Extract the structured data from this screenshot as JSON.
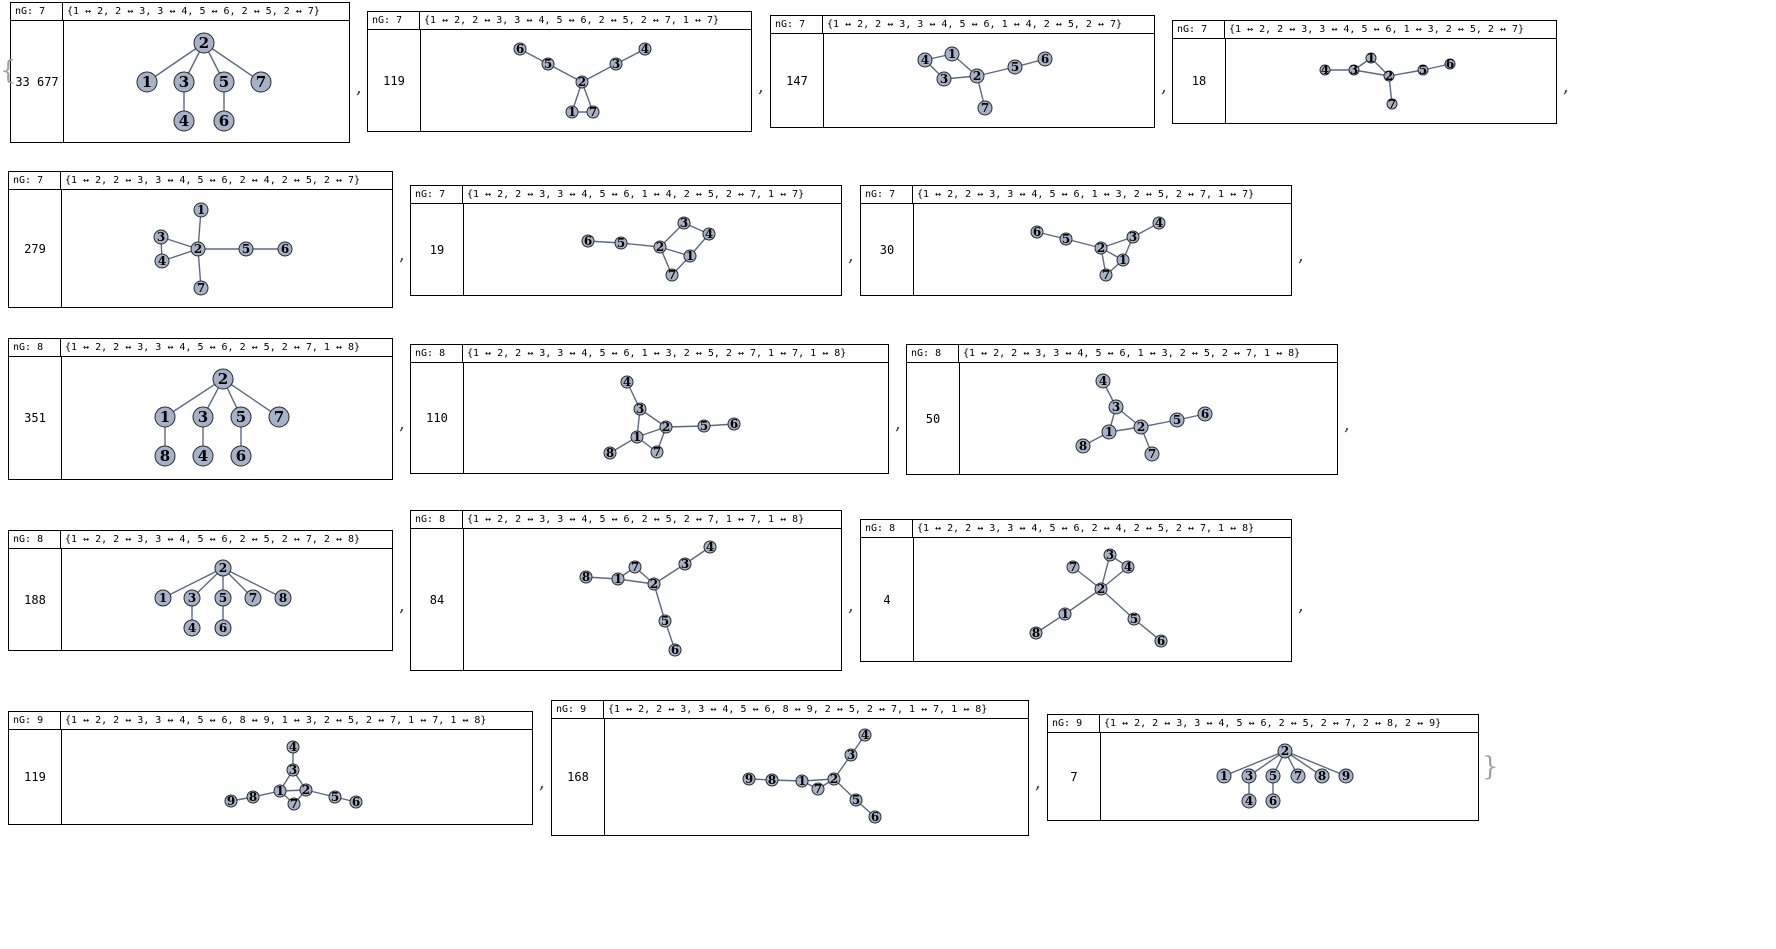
{
  "open_brace": "{",
  "close_brace": "}",
  "separator": ",",
  "graphs": [
    {
      "ng": "nG: 7",
      "edges": "{1 ↔ 2, 2 ↔ 3, 3 ↔ 4, 5 ↔ 6, 2 ↔ 5, 2 ↔ 7}",
      "count": "33 677"
    },
    {
      "ng": "nG: 7",
      "edges": "{1 ↔ 2, 2 ↔ 3, 3 ↔ 4, 5 ↔ 6, 2 ↔ 5, 2 ↔ 7, 1 ↔ 7}",
      "count": "119"
    },
    {
      "ng": "nG: 7",
      "edges": "{1 ↔ 2, 2 ↔ 3, 3 ↔ 4, 5 ↔ 6, 1 ↔ 4, 2 ↔ 5, 2 ↔ 7}",
      "count": "147"
    },
    {
      "ng": "nG: 7",
      "edges": "{1 ↔ 2, 2 ↔ 3, 3 ↔ 4, 5 ↔ 6, 1 ↔ 3, 2 ↔ 5, 2 ↔ 7}",
      "count": "18"
    },
    {
      "ng": "nG: 7",
      "edges": "{1 ↔ 2, 2 ↔ 3, 3 ↔ 4, 5 ↔ 6, 2 ↔ 4, 2 ↔ 5, 2 ↔ 7}",
      "count": "279"
    },
    {
      "ng": "nG: 7",
      "edges": "{1 ↔ 2, 2 ↔ 3, 3 ↔ 4, 5 ↔ 6, 1 ↔ 4, 2 ↔ 5, 2 ↔ 7, 1 ↔ 7}",
      "count": "19"
    },
    {
      "ng": "nG: 7",
      "edges": "{1 ↔ 2, 2 ↔ 3, 3 ↔ 4, 5 ↔ 6, 1 ↔ 3, 2 ↔ 5, 2 ↔ 7, 1 ↔ 7}",
      "count": "30"
    },
    {
      "ng": "nG: 8",
      "edges": "{1 ↔ 2, 2 ↔ 3, 3 ↔ 4, 5 ↔ 6, 2 ↔ 5, 2 ↔ 7, 1 ↔ 8}",
      "count": "351"
    },
    {
      "ng": "nG: 8",
      "edges": "{1 ↔ 2, 2 ↔ 3, 3 ↔ 4, 5 ↔ 6, 1 ↔ 3, 2 ↔ 5, 2 ↔ 7, 1 ↔ 7, 1 ↔ 8}",
      "count": "110"
    },
    {
      "ng": "nG: 8",
      "edges": "{1 ↔ 2, 2 ↔ 3, 3 ↔ 4, 5 ↔ 6, 1 ↔ 3, 2 ↔ 5, 2 ↔ 7, 1 ↔ 8}",
      "count": "50"
    },
    {
      "ng": "nG: 8",
      "edges": "{1 ↔ 2, 2 ↔ 3, 3 ↔ 4, 5 ↔ 6, 2 ↔ 5, 2 ↔ 7, 2 ↔ 8}",
      "count": "188"
    },
    {
      "ng": "nG: 8",
      "edges": "{1 ↔ 2, 2 ↔ 3, 3 ↔ 4, 5 ↔ 6, 2 ↔ 5, 2 ↔ 7, 1 ↔ 7, 1 ↔ 8}",
      "count": "84"
    },
    {
      "ng": "nG: 8",
      "edges": "{1 ↔ 2, 2 ↔ 3, 3 ↔ 4, 5 ↔ 6, 2 ↔ 4, 2 ↔ 5, 2 ↔ 7, 1 ↔ 8}",
      "count": "4"
    },
    {
      "ng": "nG: 9",
      "edges": "{1 ↔ 2, 2 ↔ 3, 3 ↔ 4, 5 ↔ 6, 8 ↔ 9, 1 ↔ 3, 2 ↔ 5, 2 ↔ 7, 1 ↔ 7, 1 ↔ 8}",
      "count": "119"
    },
    {
      "ng": "nG: 9",
      "edges": "{1 ↔ 2, 2 ↔ 3, 3 ↔ 4, 5 ↔ 6, 8 ↔ 9, 2 ↔ 5, 2 ↔ 7, 1 ↔ 7, 1 ↔ 8}",
      "count": "168"
    },
    {
      "ng": "nG: 9",
      "edges": "{1 ↔ 2, 2 ↔ 3, 3 ↔ 4, 5 ↔ 6, 2 ↔ 5, 2 ↔ 7, 2 ↔ 8, 2 ↔ 9}",
      "count": "7"
    }
  ]
}
